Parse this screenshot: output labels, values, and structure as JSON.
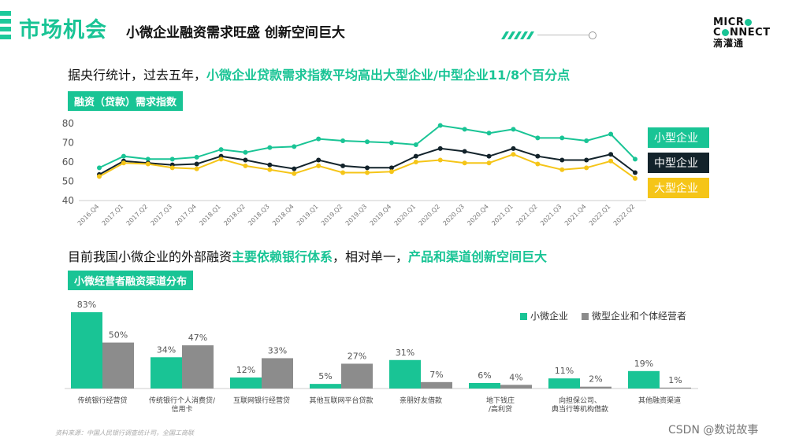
{
  "header": {
    "title": "市场机会",
    "subtitle": "小微企业融资需求旺盛 创新空间巨大",
    "logo_line1": "MICR",
    "logo_line2": "C",
    "logo_line2b": "NNECT",
    "logo_cn": "滴灌通"
  },
  "section1": {
    "headline_prefix": "据央行统计，过去五年，",
    "headline_highlight": "小微企业贷款需求指数平均高出大型企业/中型企业11/8个百分点",
    "tag": "融资（贷款）需求指数"
  },
  "section2": {
    "headline_prefix": "目前我国小微企业的外部融资",
    "headline_hl1": "主要依赖银行体系",
    "headline_mid": "，相对单一，",
    "headline_hl2": "产品和渠道创新空间巨大",
    "tag": "小微经营者融资渠道分布"
  },
  "colors": {
    "green": "#19c495",
    "dark": "#13232b",
    "yellow": "#f5c518",
    "gray": "#8c8c8c"
  },
  "chart_data": [
    {
      "type": "line",
      "title": "融资（贷款）需求指数",
      "x": [
        "2016.Q4",
        "2017.Q1",
        "2017.Q2",
        "2017.Q3",
        "2017.Q4",
        "2018.Q1",
        "2018.Q2",
        "2018.Q3",
        "2018.Q4",
        "2019.Q1",
        "2019.Q2",
        "2019.Q3",
        "2019.Q4",
        "2020.Q1",
        "2020.Q2",
        "2020.Q3",
        "2020.Q4",
        "2021.Q1",
        "2021.Q2",
        "2021.Q3",
        "2021.Q4",
        "2022.Q1",
        "2022.Q2"
      ],
      "ylim": [
        40,
        80
      ],
      "yticks": [
        40,
        50,
        60,
        70,
        80
      ],
      "series": [
        {
          "name": "小型企业",
          "color": "#19c495",
          "values": [
            57,
            63,
            61.5,
            61.5,
            62.5,
            66.5,
            65,
            67.5,
            68,
            72,
            71,
            70.5,
            70,
            69,
            79,
            77,
            75,
            77,
            72.5,
            72.5,
            71,
            74.5,
            61.5
          ]
        },
        {
          "name": "中型企业",
          "color": "#13232b",
          "values": [
            53.5,
            60.5,
            59.5,
            58.5,
            59,
            63,
            61,
            58.5,
            56.5,
            61,
            58,
            57,
            57,
            63,
            67,
            65.5,
            63,
            67,
            63,
            61,
            61,
            64,
            54.5
          ]
        },
        {
          "name": "大型企业",
          "color": "#f5c518",
          "values": [
            52.5,
            59.5,
            59,
            57,
            56.5,
            61.5,
            58,
            56,
            54,
            58,
            54.5,
            54.5,
            55,
            60,
            61,
            59.5,
            59.5,
            64,
            59,
            56,
            57,
            60.5,
            51.5
          ]
        }
      ]
    },
    {
      "type": "bar",
      "title": "小微经营者融资渠道分布",
      "categories": [
        "传统银行经营贷",
        "传统银行个人消费贷/\n信用卡",
        "互联网银行经营贷",
        "其他互联网平台贷款",
        "亲朋好友借款",
        "地下钱庄\n/高利贷",
        "向担保公司、\n典当行等机构借款",
        "其他融资渠道"
      ],
      "ylim": [
        0,
        83
      ],
      "series": [
        {
          "name": "小微企业",
          "color": "#19c495",
          "values": [
            83,
            34,
            12,
            5,
            31,
            6,
            11,
            19
          ],
          "labels": [
            "83%",
            "34%",
            "12%",
            "5%",
            "31%",
            "6%",
            "11%",
            "19%"
          ]
        },
        {
          "name": "微型企业和个体经营者",
          "color": "#8c8c8c",
          "values": [
            50,
            47,
            33,
            27,
            7,
            4,
            2,
            1
          ],
          "labels": [
            "50%",
            "47%",
            "33%",
            "27%",
            "7%",
            "4%",
            "2%",
            "1%"
          ]
        }
      ],
      "legend": "top-right"
    }
  ],
  "footer": {
    "source": "资料来源：中国人民银行调查统计司，全国工商联",
    "watermark": "CSDN @数说故事"
  }
}
